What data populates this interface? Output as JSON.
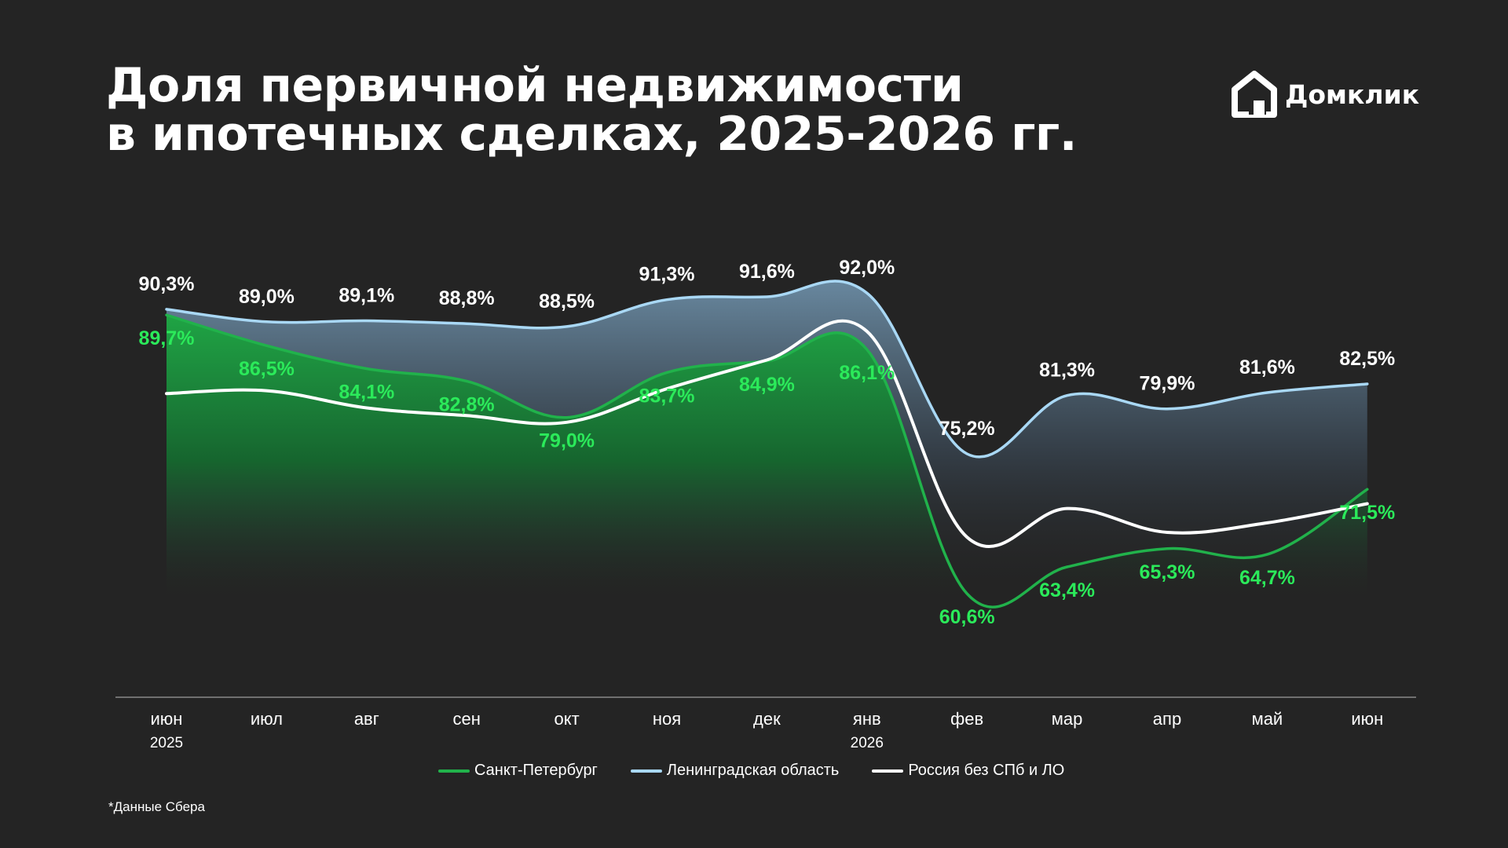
{
  "title": {
    "line1": "Доля первичной недвижимости",
    "line2": "в ипотечных сделках, 2025-2026 гг."
  },
  "brand": {
    "name": "Домклик",
    "icon": "domclick-house-logo"
  },
  "footnote": "*Данные Сбера",
  "colors": {
    "background": "#242424",
    "spb": "#21b24b",
    "lo": "#a9d8f5",
    "russia": "#ffffff",
    "spb_label": "#2bea5a",
    "value_label": "#ffffff",
    "axis": "#8a8a8a"
  },
  "chart_data": {
    "type": "line",
    "categories": [
      "июн",
      "июл",
      "авг",
      "сен",
      "окт",
      "ноя",
      "дек",
      "янв",
      "фев",
      "мар",
      "апр",
      "май",
      "июн"
    ],
    "year_labels": [
      "2025",
      "",
      "",
      "",
      "",
      "",
      "",
      "2026",
      "",
      "",
      "",
      "",
      ""
    ],
    "series": [
      {
        "name": "Санкт-Петербург",
        "values": [
          89.7,
          86.5,
          84.1,
          82.8,
          79.0,
          83.7,
          84.9,
          86.1,
          60.6,
          63.4,
          65.3,
          64.7,
          71.5
        ],
        "labels": [
          "89,7%",
          "86,5%",
          "84,1%",
          "82,8%",
          "79,0%",
          "83,7%",
          "84,9%",
          "86,1%",
          "60,6%",
          "63,4%",
          "65,3%",
          "64,7%",
          "71,5%"
        ]
      },
      {
        "name": "Ленинградская область",
        "values": [
          90.3,
          89.0,
          89.1,
          88.8,
          88.5,
          91.3,
          91.6,
          92.0,
          75.2,
          81.3,
          79.9,
          81.6,
          82.5
        ],
        "labels": [
          "90,3%",
          "89,0%",
          "89,1%",
          "88,8%",
          "88,5%",
          "91,3%",
          "91,6%",
          "92,0%",
          "75,2%",
          "81,3%",
          "79,9%",
          "81,6%",
          "82,5%"
        ]
      },
      {
        "name": "Россия без СПб и ЛО",
        "values": [
          81.5,
          81.8,
          80.0,
          79.2,
          78.5,
          82.0,
          85.0,
          88.0,
          66.5,
          69.5,
          67.0,
          68.0,
          70.0
        ],
        "labels": []
      }
    ],
    "ylim": [
      57,
      98
    ],
    "grid": false,
    "legend_position": "bottom"
  }
}
